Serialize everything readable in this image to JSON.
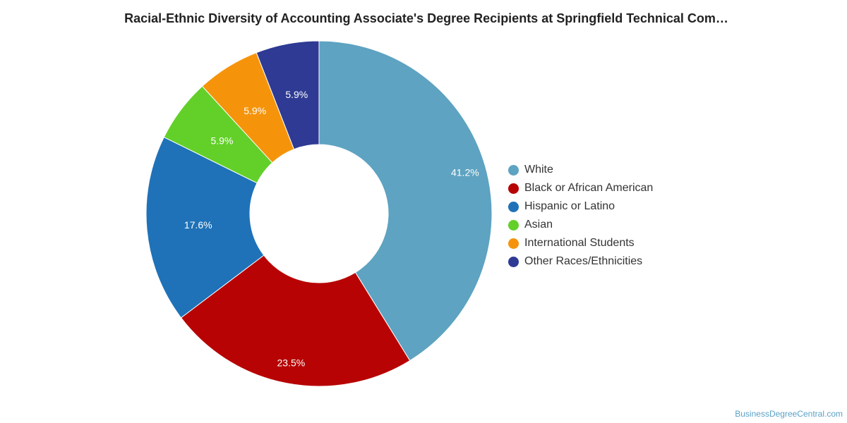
{
  "chart_data": {
    "type": "pie",
    "title": "Racial-Ethnic Diversity of Accounting Associate's Degree Recipients at Springfield Technical Com…",
    "slices": [
      {
        "label": "White",
        "value": 41.2,
        "display": "41.2%",
        "color": "#5ea3c1"
      },
      {
        "label": "Black or African American",
        "value": 23.5,
        "display": "23.5%",
        "color": "#b70303"
      },
      {
        "label": "Hispanic or Latino",
        "value": 17.6,
        "display": "17.6%",
        "color": "#1f72b8"
      },
      {
        "label": "Asian",
        "value": 5.9,
        "display": "5.9%",
        "color": "#63d02a"
      },
      {
        "label": "International Students",
        "value": 5.9,
        "display": "5.9%",
        "color": "#f5940b"
      },
      {
        "label": "Other Races/Ethnicities",
        "value": 5.9,
        "display": "5.9%",
        "color": "#2e3a93"
      }
    ],
    "donut": true,
    "legend_position": "right"
  },
  "credit": "BusinessDegreeCentral.com"
}
